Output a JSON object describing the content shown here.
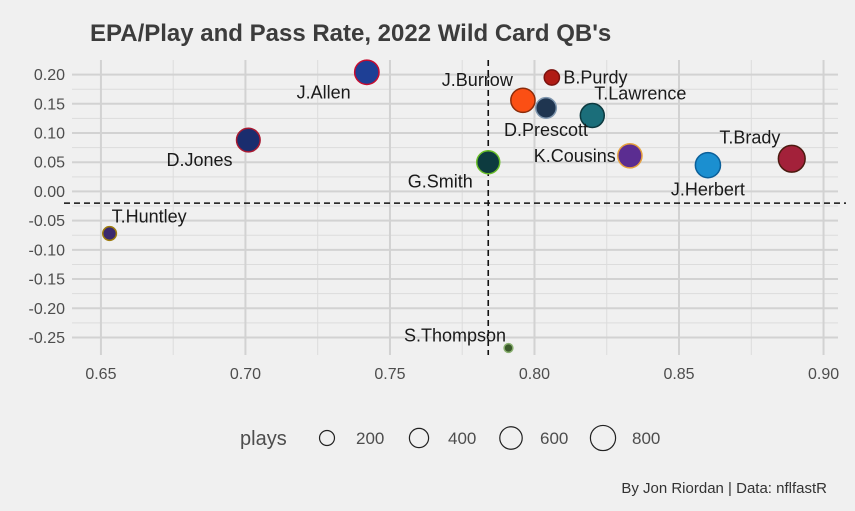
{
  "chart_data": {
    "type": "scatter",
    "title": "EPA/Play and Pass Rate, 2022 Wild Card QB's",
    "xlabel": "",
    "ylabel": "",
    "xlim": [
      0.64,
      0.905
    ],
    "ylim": [
      -0.28,
      0.225
    ],
    "x_ticks": [
      "0.65",
      "0.70",
      "0.75",
      "0.80",
      "0.85",
      "0.90"
    ],
    "y_ticks": [
      "0.20",
      "0.15",
      "0.10",
      "0.05",
      "0.00",
      "-0.05",
      "-0.10",
      "-0.15",
      "-0.20",
      "-0.25"
    ],
    "x_tick_values": [
      0.65,
      0.7,
      0.75,
      0.8,
      0.85,
      0.9
    ],
    "y_tick_values": [
      0.2,
      0.15,
      0.1,
      0.05,
      0.0,
      -0.05,
      -0.1,
      -0.15,
      -0.2,
      -0.25
    ],
    "reference_lines": {
      "x": 0.784,
      "y": -0.02
    },
    "grid": true,
    "points": [
      {
        "name": "J.Allen",
        "x": 0.742,
        "y": 0.204,
        "plays": 650,
        "color": "#1e3f95",
        "stroke": "#c60c30",
        "label_pos": "left-below"
      },
      {
        "name": "D.Jones",
        "x": 0.701,
        "y": 0.088,
        "plays": 600,
        "color": "#1a2d6e",
        "stroke": "#a71930",
        "label_pos": "left-below"
      },
      {
        "name": "T.Huntley",
        "x": 0.653,
        "y": -0.072,
        "plays": 130,
        "color": "#3b2a6e",
        "stroke": "#9e7c0c",
        "label_pos": "right-above"
      },
      {
        "name": "J.Burrow",
        "x": 0.796,
        "y": 0.156,
        "plays": 640,
        "color": "#fb4f14",
        "stroke": "#8a2b0a",
        "label_pos": "left-above"
      },
      {
        "name": "D.Prescott",
        "x": 0.804,
        "y": 0.143,
        "plays": 420,
        "color": "#1f3550",
        "stroke": "#7f96ae",
        "label_pos": "below"
      },
      {
        "name": "B.Purdy",
        "x": 0.806,
        "y": 0.195,
        "plays": 180,
        "color": "#b01b14",
        "stroke": "#7a120e",
        "label_pos": "right"
      },
      {
        "name": "T.Lawrence",
        "x": 0.82,
        "y": 0.13,
        "plays": 620,
        "color": "#1b6e7a",
        "stroke": "#0d3a40",
        "label_pos": "right-above"
      },
      {
        "name": "G.Smith",
        "x": 0.784,
        "y": 0.05,
        "plays": 560,
        "color": "#0d3b3f",
        "stroke": "#69be28",
        "label_pos": "left-below"
      },
      {
        "name": "K.Cousins",
        "x": 0.833,
        "y": 0.061,
        "plays": 640,
        "color": "#5b2d91",
        "stroke": "#e7a03c",
        "label_pos": "left"
      },
      {
        "name": "J.Herbert",
        "x": 0.86,
        "y": 0.045,
        "plays": 700,
        "color": "#1b8fd0",
        "stroke": "#0b5f99",
        "label_pos": "below"
      },
      {
        "name": "T.Brady",
        "x": 0.889,
        "y": 0.056,
        "plays": 820,
        "color": "#a3213a",
        "stroke": "#4c1a10",
        "label_pos": "left-above"
      },
      {
        "name": "S.Thompson",
        "x": 0.791,
        "y": -0.268,
        "plays": 25,
        "color": "#3a5a2a",
        "stroke": "#8ab070",
        "label_pos": "left-above"
      }
    ],
    "legend": {
      "title": "plays",
      "position": "bottom",
      "entries": [
        {
          "label": "200",
          "value": 200
        },
        {
          "label": "400",
          "value": 400
        },
        {
          "label": "600",
          "value": 600
        },
        {
          "label": "800",
          "value": 800
        }
      ]
    }
  },
  "caption": "By Jon Riordan | Data: nflfastR",
  "colors": {
    "background": "#f0f0f0",
    "grid": "#d2d2d2",
    "title": "#3c3c3c",
    "text": "#4d4d4d"
  }
}
